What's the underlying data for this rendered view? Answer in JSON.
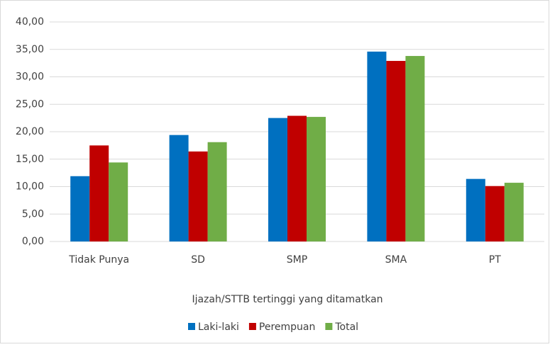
{
  "chart_data": {
    "type": "bar",
    "x_label": "Ijazah/STTB tertinggi yang ditamatkan",
    "categories": [
      "Tidak Punya",
      "SD",
      "SMP",
      "SMA",
      "PT"
    ],
    "series": [
      {
        "name": "Laki-laki",
        "color": "#0070c0",
        "values": [
          11.9,
          19.4,
          22.5,
          34.6,
          11.4
        ]
      },
      {
        "name": "Perempuan",
        "color": "#c00000",
        "values": [
          17.5,
          16.4,
          22.9,
          32.9,
          10.1
        ]
      },
      {
        "name": "Total",
        "color": "#70ad47",
        "values": [
          14.4,
          18.1,
          22.7,
          33.8,
          10.7
        ]
      }
    ],
    "ylim": [
      0,
      40
    ],
    "yticks": [
      {
        "value": 0,
        "label": "0,00"
      },
      {
        "value": 5,
        "label": "5,00"
      },
      {
        "value": 10,
        "label": "10,00"
      },
      {
        "value": 15,
        "label": "15,00"
      },
      {
        "value": 20,
        "label": "20,00"
      },
      {
        "value": 25,
        "label": "25,00"
      },
      {
        "value": 30,
        "label": "30,00"
      },
      {
        "value": 35,
        "label": "35,00"
      },
      {
        "value": 40,
        "label": "40,00"
      }
    ],
    "grid": true,
    "legend": "bottom"
  }
}
